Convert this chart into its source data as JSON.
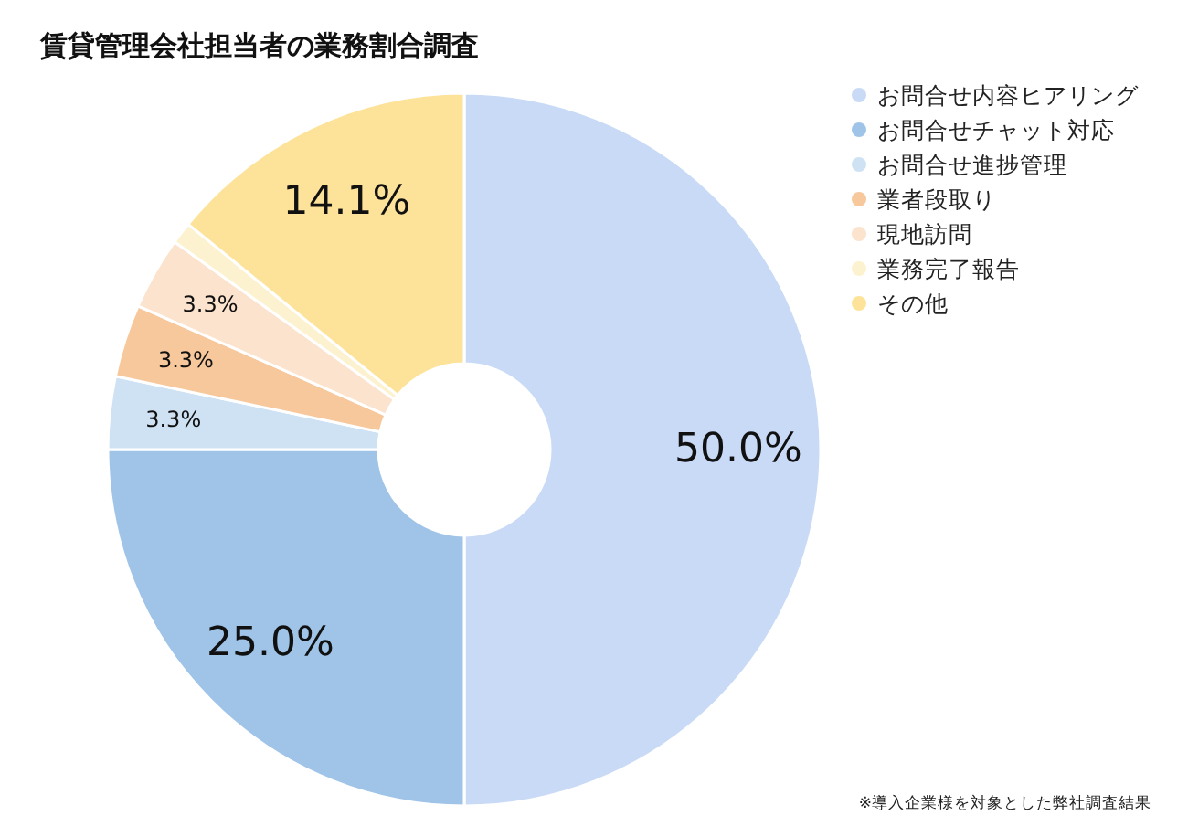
{
  "chart_data": {
    "type": "donut",
    "title": "賃貸管理会社担当者の業務割合調査",
    "categories": [
      "お問合せ内容ヒアリング",
      "お問合せチャット対応",
      "お問合せ進捗管理",
      "業者段取り",
      "現地訪問",
      "業務完了報告",
      "その他"
    ],
    "values": [
      50.0,
      25.0,
      3.3,
      3.3,
      3.3,
      1.0,
      14.1
    ],
    "colors": [
      "#c9daf6",
      "#9fc4e8",
      "#cfe2f3",
      "#f6c89c",
      "#fbe3cd",
      "#fdf2cf",
      "#fde39a"
    ],
    "value_labels": [
      "50.0%",
      "25.0%",
      "3.3%",
      "3.3%",
      "3.3%",
      null,
      "14.1%"
    ],
    "legend": "top right",
    "annotations": [
      "※導入企業様を対象とした弊社調査結果"
    ]
  }
}
